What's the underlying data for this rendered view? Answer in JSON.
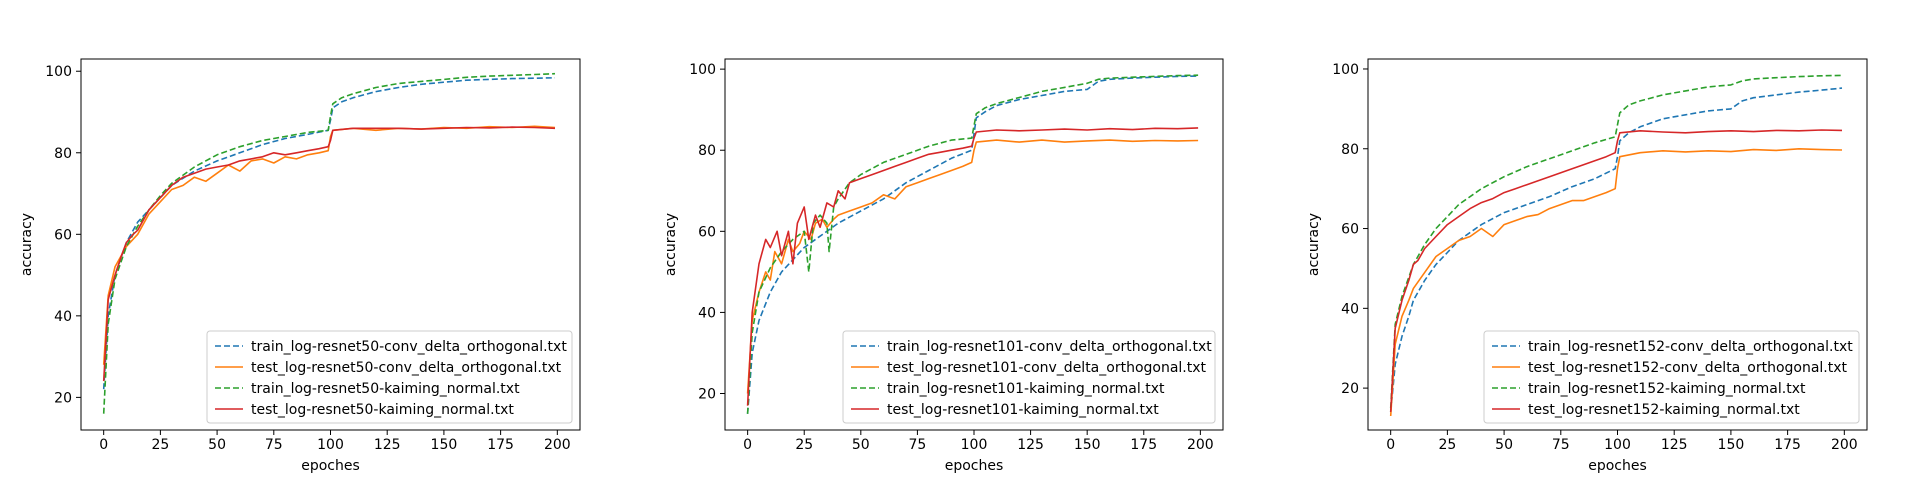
{
  "chart_data": [
    {
      "type": "line",
      "title": "",
      "xlabel": "epoches",
      "ylabel": "accuracy",
      "xlim": [
        -10,
        210
      ],
      "ylim": [
        12,
        103
      ],
      "xticks": [
        0,
        25,
        50,
        75,
        100,
        125,
        150,
        175,
        200
      ],
      "yticks": [
        20,
        40,
        60,
        80,
        100
      ],
      "legend_position": "lower-right",
      "series": [
        {
          "name": "train_log-resnet50-conv_delta_orthogonal.txt",
          "color": "#1f77b4",
          "dash": "dashed",
          "x": [
            0,
            2,
            5,
            10,
            15,
            20,
            25,
            30,
            40,
            50,
            60,
            70,
            80,
            90,
            99,
            100,
            101,
            105,
            110,
            120,
            130,
            140,
            150,
            160,
            170,
            180,
            190,
            199
          ],
          "y": [
            22,
            40,
            50,
            58,
            63,
            66,
            69,
            72,
            75.5,
            78,
            80,
            82,
            83.5,
            84.5,
            85.5,
            88,
            91,
            92.5,
            93.5,
            95,
            96,
            96.8,
            97.3,
            97.8,
            98,
            98.2,
            98.3,
            98.4
          ]
        },
        {
          "name": "test_log-resnet50-conv_delta_orthogonal.txt",
          "color": "#ff7f0e",
          "dash": "solid",
          "x": [
            0,
            2,
            5,
            8,
            10,
            15,
            20,
            25,
            30,
            35,
            40,
            45,
            50,
            55,
            60,
            65,
            70,
            75,
            80,
            85,
            90,
            95,
            99,
            100,
            101,
            110,
            120,
            130,
            140,
            150,
            160,
            170,
            180,
            190,
            199
          ],
          "y": [
            28,
            45,
            52,
            55,
            57,
            60,
            65,
            68,
            71,
            72,
            74,
            73,
            75,
            77,
            75.5,
            78,
            78.5,
            77.5,
            79,
            78.5,
            79.5,
            80,
            80.5,
            84,
            85.5,
            86,
            85.5,
            86,
            85.8,
            86.2,
            86,
            86.4,
            86.2,
            86.5,
            86.2
          ]
        },
        {
          "name": "train_log-resnet50-kaiming_normal.txt",
          "color": "#2ca02c",
          "dash": "dashed",
          "x": [
            0,
            2,
            5,
            10,
            15,
            20,
            25,
            30,
            40,
            50,
            60,
            70,
            80,
            90,
            99,
            100,
            101,
            105,
            110,
            120,
            130,
            140,
            150,
            160,
            170,
            180,
            190,
            199
          ],
          "y": [
            16,
            38,
            49,
            57,
            62,
            66,
            69.5,
            72.5,
            76.5,
            79.5,
            81.5,
            83,
            84,
            85,
            85.5,
            89,
            92,
            93.5,
            94.5,
            96,
            97,
            97.5,
            98,
            98.5,
            98.8,
            99,
            99.2,
            99.4
          ]
        },
        {
          "name": "test_log-resnet50-kaiming_normal.txt",
          "color": "#d62728",
          "dash": "solid",
          "x": [
            0,
            2,
            5,
            8,
            10,
            13,
            15,
            20,
            25,
            30,
            35,
            40,
            45,
            50,
            55,
            60,
            65,
            70,
            75,
            80,
            85,
            90,
            95,
            99,
            100,
            101,
            110,
            120,
            130,
            140,
            150,
            160,
            170,
            180,
            190,
            199
          ],
          "y": [
            24,
            44,
            50,
            55,
            58,
            60,
            61,
            66,
            69,
            72,
            74,
            75,
            76,
            76.5,
            77,
            78,
            78.5,
            79,
            80,
            79.5,
            80,
            80.5,
            81,
            81.5,
            83,
            85.5,
            86,
            86,
            86,
            85.8,
            86,
            86.2,
            86.1,
            86.3,
            86.2,
            86
          ]
        }
      ]
    },
    {
      "type": "line",
      "title": "",
      "xlabel": "epoches",
      "ylabel": "accuracy",
      "xlim": [
        -10,
        210
      ],
      "ylim": [
        11,
        102.5
      ],
      "xticks": [
        0,
        25,
        50,
        75,
        100,
        125,
        150,
        175,
        200
      ],
      "yticks": [
        20,
        40,
        60,
        80,
        100
      ],
      "legend_position": "lower-right",
      "series": [
        {
          "name": "train_log-resnet101-conv_delta_orthogonal.txt",
          "color": "#1f77b4",
          "dash": "dashed",
          "x": [
            0,
            2,
            5,
            10,
            15,
            20,
            25,
            30,
            35,
            40,
            50,
            60,
            70,
            80,
            90,
            99,
            100,
            101,
            105,
            110,
            120,
            130,
            140,
            150,
            155,
            160,
            170,
            180,
            190,
            199
          ],
          "y": [
            15,
            30,
            38,
            45,
            50,
            53,
            56,
            58,
            60,
            62,
            65,
            68,
            72,
            75,
            78,
            80,
            84,
            88,
            89.5,
            91,
            92.5,
            93.5,
            94.5,
            95,
            97,
            97.5,
            97.8,
            98,
            98.2,
            98.3
          ]
        },
        {
          "name": "test_log-resnet101-conv_delta_orthogonal.txt",
          "color": "#ff7f0e",
          "dash": "solid",
          "x": [
            0,
            2,
            5,
            8,
            10,
            12,
            15,
            18,
            20,
            23,
            25,
            28,
            30,
            33,
            35,
            38,
            40,
            45,
            50,
            55,
            60,
            65,
            70,
            75,
            80,
            85,
            90,
            95,
            99,
            100,
            101,
            110,
            120,
            130,
            140,
            150,
            160,
            170,
            180,
            190,
            199
          ],
          "y": [
            20,
            38,
            45,
            50,
            48,
            55,
            52,
            58,
            55,
            57,
            60,
            58,
            62,
            63,
            61,
            63,
            64,
            65,
            66,
            67,
            69,
            68,
            71,
            72,
            73,
            74,
            75,
            76,
            77,
            80,
            82,
            82.5,
            82,
            82.5,
            82,
            82.3,
            82.5,
            82.2,
            82.4,
            82.3,
            82.4
          ]
        },
        {
          "name": "train_log-resnet101-kaiming_normal.txt",
          "color": "#2ca02c",
          "dash": "dashed",
          "x": [
            0,
            2,
            5,
            10,
            15,
            20,
            25,
            27,
            29,
            32,
            35,
            36,
            38,
            40,
            45,
            50,
            60,
            70,
            80,
            90,
            99,
            100,
            101,
            105,
            110,
            120,
            130,
            140,
            150,
            155,
            160,
            170,
            180,
            190,
            199
          ],
          "y": [
            15,
            35,
            45,
            51,
            55,
            58,
            60,
            50,
            62,
            64,
            62,
            55,
            66,
            68,
            72,
            74,
            77,
            79,
            81,
            82.5,
            83,
            86,
            89,
            90.5,
            91.5,
            93,
            94.5,
            95.5,
            96.5,
            97.5,
            97.8,
            98,
            98.2,
            98.4,
            98.5
          ]
        },
        {
          "name": "test_log-resnet101-kaiming_normal.txt",
          "color": "#d62728",
          "dash": "solid",
          "x": [
            0,
            2,
            5,
            8,
            10,
            13,
            15,
            18,
            20,
            22,
            25,
            27,
            30,
            32,
            35,
            38,
            40,
            43,
            45,
            50,
            55,
            60,
            65,
            70,
            75,
            80,
            85,
            90,
            95,
            99,
            100,
            101,
            110,
            120,
            130,
            140,
            150,
            160,
            170,
            180,
            190,
            199
          ],
          "y": [
            17,
            40,
            52,
            58,
            56,
            60,
            54,
            60,
            52,
            62,
            66,
            58,
            64,
            61,
            67,
            66,
            70,
            68,
            72,
            73,
            74,
            75,
            76,
            77,
            78,
            79,
            79.5,
            80,
            80.5,
            81,
            83,
            84.5,
            85,
            84.8,
            85,
            85.2,
            85,
            85.3,
            85.1,
            85.4,
            85.3,
            85.5
          ]
        }
      ]
    },
    {
      "type": "line",
      "title": "",
      "xlabel": "epoches",
      "ylabel": "accuracy",
      "xlim": [
        -10,
        210
      ],
      "ylim": [
        9.5,
        102.5
      ],
      "xticks": [
        0,
        25,
        50,
        75,
        100,
        125,
        150,
        175,
        200
      ],
      "yticks": [
        20,
        40,
        60,
        80,
        100
      ],
      "legend_position": "lower-right",
      "series": [
        {
          "name": "train_log-resnet152-conv_delta_orthogonal.txt",
          "color": "#1f77b4",
          "dash": "dashed",
          "x": [
            0,
            2,
            5,
            8,
            10,
            15,
            20,
            25,
            30,
            40,
            50,
            60,
            70,
            80,
            90,
            99,
            100,
            101,
            105,
            110,
            120,
            130,
            140,
            150,
            155,
            160,
            170,
            180,
            190,
            199
          ],
          "y": [
            14,
            26,
            33,
            38,
            42,
            47,
            51,
            54,
            57,
            61,
            64,
            66,
            68,
            70.5,
            72.5,
            75,
            78,
            82,
            84,
            85.5,
            87.5,
            88.5,
            89.5,
            90,
            92,
            92.8,
            93.5,
            94.2,
            94.7,
            95.2
          ]
        },
        {
          "name": "test_log-resnet152-conv_delta_orthogonal.txt",
          "color": "#ff7f0e",
          "dash": "solid",
          "x": [
            0,
            2,
            5,
            8,
            10,
            15,
            20,
            25,
            30,
            35,
            40,
            45,
            50,
            55,
            60,
            65,
            70,
            75,
            80,
            85,
            90,
            95,
            99,
            100,
            101,
            110,
            120,
            130,
            140,
            150,
            160,
            170,
            180,
            190,
            199
          ],
          "y": [
            13,
            31,
            38,
            42,
            45,
            49,
            53,
            55,
            57,
            58,
            60,
            58,
            61,
            62,
            63,
            63.5,
            65,
            66,
            67,
            67,
            68,
            69,
            70,
            75,
            78,
            79,
            79.5,
            79.2,
            79.5,
            79.3,
            79.8,
            79.6,
            80,
            79.8,
            79.7
          ]
        },
        {
          "name": "train_log-resnet152-kaiming_normal.txt",
          "color": "#2ca02c",
          "dash": "dashed",
          "x": [
            0,
            2,
            5,
            10,
            15,
            20,
            25,
            30,
            40,
            50,
            60,
            70,
            80,
            90,
            99,
            100,
            101,
            105,
            110,
            120,
            130,
            140,
            150,
            155,
            160,
            170,
            180,
            190,
            199
          ],
          "y": [
            15,
            36,
            43,
            51,
            56,
            60,
            63,
            66,
            70,
            73,
            75.5,
            77.5,
            79.5,
            81.5,
            83,
            86,
            89,
            91,
            92,
            93.5,
            94.5,
            95.5,
            96,
            97,
            97.5,
            97.8,
            98.1,
            98.3,
            98.4
          ]
        },
        {
          "name": "test_log-resnet152-kaiming_normal.txt",
          "color": "#d62728",
          "dash": "solid",
          "x": [
            0,
            2,
            5,
            8,
            10,
            12,
            15,
            20,
            25,
            30,
            35,
            40,
            45,
            50,
            55,
            60,
            65,
            70,
            75,
            80,
            85,
            90,
            95,
            99,
            100,
            101,
            110,
            120,
            130,
            140,
            150,
            160,
            170,
            180,
            190,
            199
          ],
          "y": [
            14,
            35,
            42,
            47,
            51,
            52,
            55,
            58,
            61,
            63,
            65,
            66.5,
            67.5,
            69,
            70,
            71,
            72,
            73,
            74,
            75,
            76,
            77,
            78,
            79,
            82,
            84,
            84.5,
            84.2,
            84,
            84.3,
            84.5,
            84.3,
            84.6,
            84.5,
            84.7,
            84.6
          ]
        }
      ]
    }
  ]
}
